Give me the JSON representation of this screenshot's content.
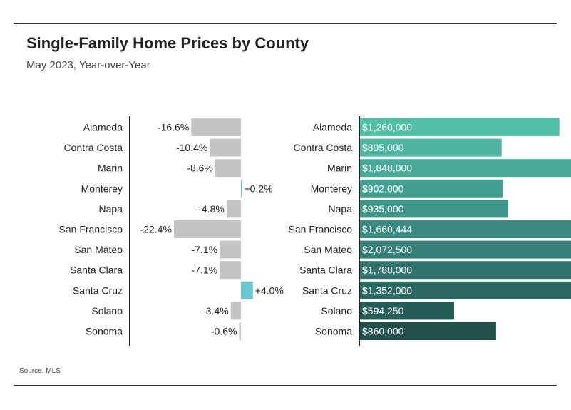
{
  "title": "Single-Family Home Prices by County",
  "subtitle": "May 2023, Year-over-Year",
  "source": "Source: MLS",
  "chart_data": [
    {
      "type": "bar",
      "orientation": "horizontal",
      "categories": [
        "Alameda",
        "Contra Costa",
        "Marin",
        "Monterey",
        "Napa",
        "San Francisco",
        "San Mateo",
        "Santa Clara",
        "Santa Cruz",
        "Solano",
        "Sonoma"
      ],
      "values": [
        -16.6,
        -10.4,
        -8.6,
        0.2,
        -4.8,
        -22.4,
        -7.1,
        -7.1,
        4.0,
        -3.4,
        -0.6
      ],
      "labels": [
        "-16.6%",
        "-10.4%",
        "-8.6%",
        "+0.2%",
        "-4.8%",
        "-22.4%",
        "-7.1%",
        "-7.1%",
        "+4.0%",
        "-3.4%",
        "-0.6%"
      ],
      "colors": {
        "negative": "#c4c4c4",
        "positive": "#6cc5cf"
      }
    },
    {
      "type": "bar",
      "orientation": "horizontal",
      "categories": [
        "Alameda",
        "Contra Costa",
        "Marin",
        "Monterey",
        "Napa",
        "San Francisco",
        "San Mateo",
        "Santa Clara",
        "Santa Cruz",
        "Solano",
        "Sonoma"
      ],
      "values": [
        1260000,
        895000,
        1848000,
        902000,
        935000,
        1660444,
        2072500,
        1788000,
        1352000,
        594250,
        860000
      ],
      "labels": [
        "$1,260,000",
        "$895,000",
        "$1,848,000",
        "$902,000",
        "$935,000",
        "$1,660,444",
        "$2,072,500",
        "$1,788,000",
        "$1,352,000",
        "$594,250",
        "$860,000"
      ],
      "colors": [
        "#52bfa7",
        "#4fb5a0",
        "#49aa98",
        "#449f90",
        "#3f9488",
        "#3a8a80",
        "#357f77",
        "#30736c",
        "#2b6861",
        "#265c56",
        "#22514b"
      ]
    }
  ]
}
